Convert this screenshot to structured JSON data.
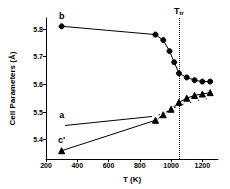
{
  "chart_data": {
    "type": "line",
    "x_label": "T (K)",
    "y_label": "Cell Parameters (Å)",
    "xlim": [
      200,
      1300
    ],
    "xticks": [
      200,
      400,
      600,
      800,
      1000,
      1200
    ],
    "ylim": [
      5.33,
      5.84
    ],
    "yticks": [
      5.4,
      5.5,
      5.6,
      5.7,
      5.8
    ],
    "grid": false,
    "legend": false,
    "series": [
      {
        "name": "b",
        "color": "#000000",
        "marker": "circle",
        "line_style": "solid",
        "x": [
          300,
          900,
          950,
          990,
          1020,
          1050,
          1100,
          1150,
          1200,
          1250
        ],
        "values": [
          5.81,
          5.78,
          5.76,
          5.72,
          5.68,
          5.64,
          5.625,
          5.615,
          5.61,
          5.61
        ]
      },
      {
        "name": "a",
        "color": "#000000",
        "marker": "emptyCircle",
        "line_style": "solid",
        "x": [
          300,
          900,
          950,
          1000,
          1050,
          1100,
          1150,
          1200,
          1250
        ],
        "values": [
          5.45,
          5.485,
          5.495,
          5.51,
          5.525,
          5.53,
          5.54,
          5.545,
          5.55
        ]
      },
      {
        "name": "c'",
        "color": "#000000",
        "marker": "triangle",
        "line_style": "solid",
        "x": [
          300,
          900,
          950,
          1000,
          1050,
          1100,
          1150,
          1200,
          1250
        ],
        "values": [
          5.36,
          5.47,
          5.49,
          5.51,
          5.535,
          5.55,
          5.56,
          5.565,
          5.57
        ]
      }
    ],
    "annotations": [
      {
        "type": "vline",
        "x": 1050,
        "label": "T",
        "subscript": "tr",
        "line_style": "dotted"
      }
    ]
  }
}
